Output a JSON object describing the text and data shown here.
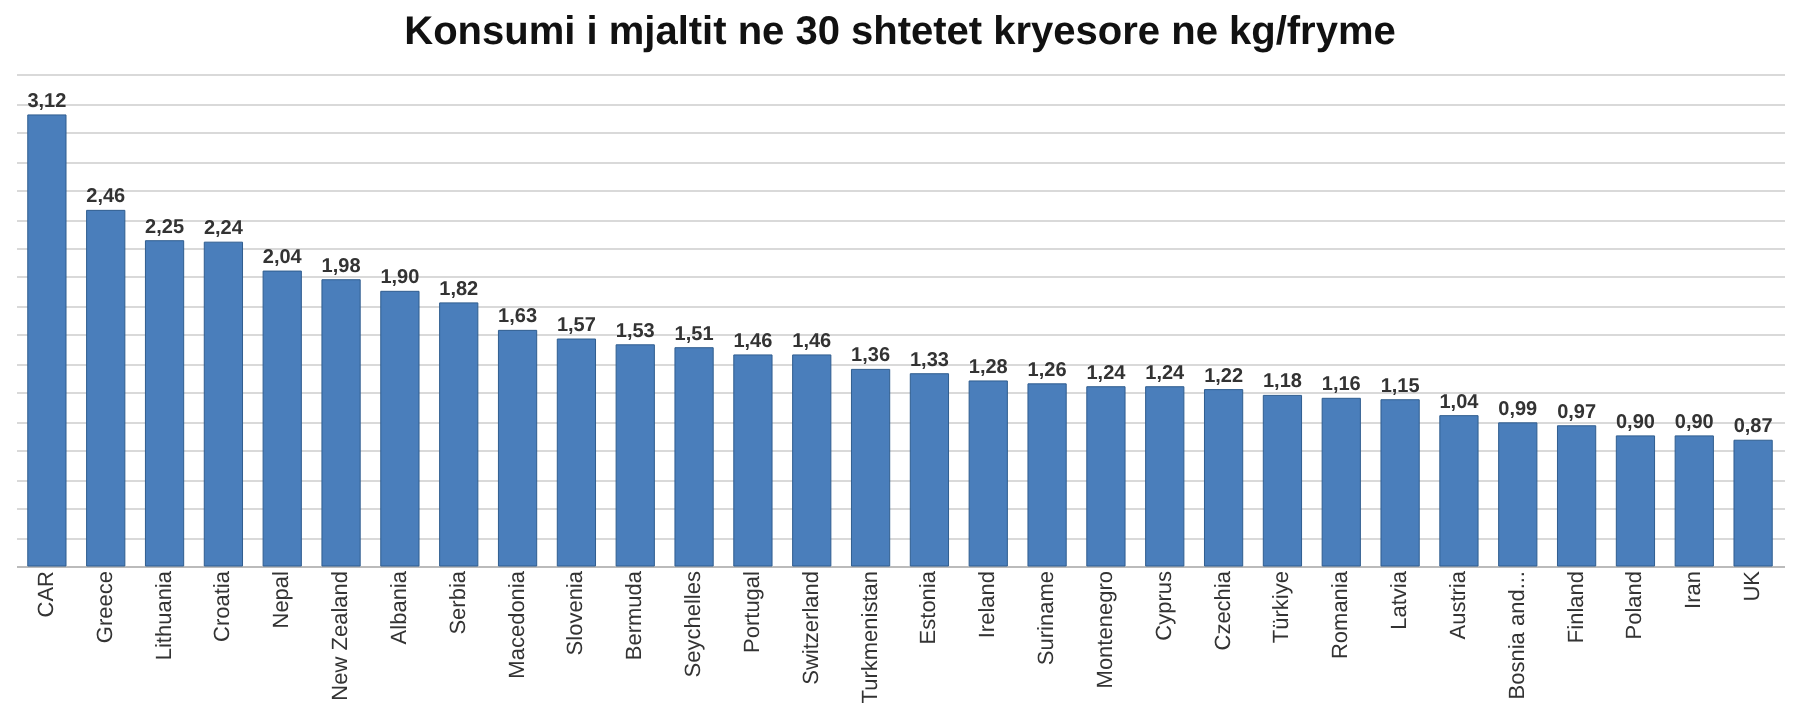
{
  "chart_data": {
    "type": "bar",
    "title": "Konsumi i mjaltit ne 30 shtetet kryesore ne kg/fryme",
    "categories": [
      "CAR",
      "Greece",
      "Lithuania",
      "Croatia",
      "Nepal",
      "New Zealand",
      "Albania",
      "Serbia",
      "Macedonia",
      "Slovenia",
      "Bermuda",
      "Seychelles",
      "Portugal",
      "Switzerland",
      "Turkmenistan",
      "Estonia",
      "Ireland",
      "Suriname",
      "Montenegro",
      "Cyprus",
      "Czechia",
      "Türkiye",
      "Romania",
      "Latvia",
      "Austria",
      "Bosnia and...",
      "Finland",
      "Poland",
      "Iran",
      "UK"
    ],
    "values": [
      3.12,
      2.46,
      2.25,
      2.24,
      2.04,
      1.98,
      1.9,
      1.82,
      1.63,
      1.57,
      1.53,
      1.51,
      1.46,
      1.46,
      1.36,
      1.33,
      1.28,
      1.26,
      1.24,
      1.24,
      1.22,
      1.18,
      1.16,
      1.15,
      1.04,
      0.99,
      0.97,
      0.9,
      0.9,
      0.87
    ],
    "value_labels": [
      "3,12",
      "2,46",
      "2,25",
      "2,24",
      "2,04",
      "1,98",
      "1,90",
      "1,82",
      "1,63",
      "1,57",
      "1,53",
      "1,51",
      "1,46",
      "1,46",
      "1,36",
      "1,33",
      "1,28",
      "1,26",
      "1,24",
      "1,24",
      "1,22",
      "1,18",
      "1,16",
      "1,15",
      "1,04",
      "0,99",
      "0,97",
      "0,90",
      "0,90",
      "0,87"
    ],
    "color": "#4a7ebb",
    "grid": "y",
    "tick_labels": "x"
  }
}
